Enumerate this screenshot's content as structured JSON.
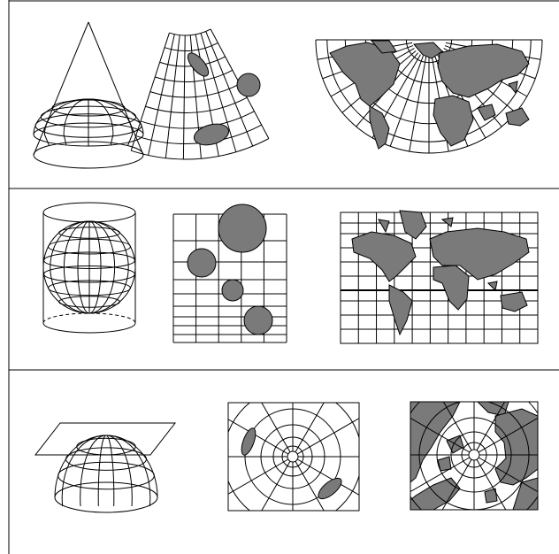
{
  "figure": {
    "rows": [
      {
        "projection": "conic",
        "panels": [
          "cone-surface",
          "conic-tissot-grid",
          "conic-world-map"
        ]
      },
      {
        "projection": "cylindrical",
        "panels": [
          "cylinder-surface",
          "cylindrical-tissot-grid",
          "cylindrical-world-map"
        ]
      },
      {
        "projection": "azimuthal",
        "panels": [
          "plane-surface",
          "azimuthal-tissot-grid",
          "azimuthal-world-map"
        ]
      }
    ]
  },
  "colors": {
    "line": "#000000",
    "land": "#7a7a7a",
    "background": "#ffffff"
  }
}
